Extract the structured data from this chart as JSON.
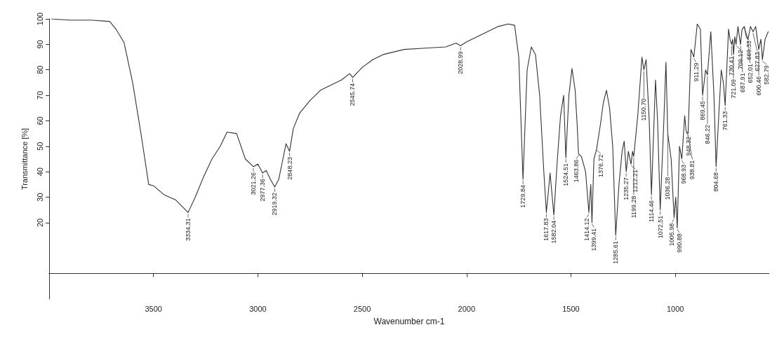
{
  "chart_data": {
    "type": "line",
    "xlabel": "Wavenumber cm-1",
    "ylabel": "Transmittance [%]",
    "xlim": [
      4000,
      550
    ],
    "xticks": [
      3500,
      3000,
      2500,
      2000,
      1500,
      1000
    ],
    "ylim": [
      -10,
      100
    ],
    "yticks": [
      20,
      30,
      40,
      50,
      60,
      70,
      80,
      90,
      100
    ],
    "grid": false,
    "marker": "none",
    "line_style": "solid",
    "series": [
      {
        "color": "#333333",
        "x": [
          3990,
          3900,
          3800,
          3710,
          3680,
          3641,
          3600,
          3560,
          3523,
          3500,
          3450,
          3395,
          3334.31,
          3300,
          3260,
          3220,
          3180,
          3148,
          3102,
          3060,
          3021.26,
          3000,
          2977.36,
          2960,
          2940,
          2919.32,
          2900,
          2880,
          2865,
          2848.23,
          2830,
          2800,
          2750,
          2700,
          2650,
          2600,
          2560,
          2545.74,
          2500,
          2450,
          2400,
          2300,
          2200,
          2100,
          2050,
          2028.99,
          2000,
          1950,
          1900,
          1850,
          1800,
          1770,
          1750,
          1729.84,
          1710,
          1690,
          1670,
          1650,
          1630,
          1617.83,
          1600,
          1582.04,
          1565,
          1550,
          1535,
          1524.51,
          1510,
          1495,
          1480,
          1470,
          1463.86,
          1450,
          1430,
          1414.12,
          1405,
          1399.41,
          1390,
          1376.72,
          1360,
          1345,
          1330,
          1315,
          1300,
          1285.61,
          1270,
          1255,
          1245,
          1235.27,
          1225,
          1212.21,
          1205,
          1199.28,
          1180,
          1160,
          1150.7,
          1140,
          1125,
          1114.46,
          1095,
          1085,
          1072.51,
          1055,
          1045,
          1036.28,
          1020,
          1005.98,
          998,
          990.88,
          980,
          968.93,
          955,
          948.32,
          938.81,
          925,
          911.29,
          895,
          880,
          869.45,
          855,
          846.22,
          830,
          815,
          804.68,
          790,
          780,
          770,
          761.33,
          745,
          738,
          730.41,
          725,
          721.09,
          715,
          709.12,
          700,
          687.91,
          680,
          669.33,
          660,
          652.01,
          640,
          627.83,
          615,
          600.46,
          590,
          582.79,
          570,
          555
        ],
        "values": [
          100,
          99.5,
          99.5,
          99,
          96,
          90.7,
          75,
          55,
          35,
          34.5,
          31,
          29,
          24,
          30,
          38,
          45,
          50,
          55.5,
          55,
          45,
          42,
          43,
          39.5,
          40.5,
          37,
          34,
          37,
          45,
          51,
          48,
          57,
          63,
          68,
          72,
          74,
          76,
          78.5,
          77,
          81,
          84,
          86,
          88,
          88.5,
          89,
          90.5,
          89.5,
          91,
          93,
          95,
          97,
          98,
          97.5,
          85,
          37,
          80,
          89,
          86,
          70,
          40,
          24,
          39.5,
          23,
          45,
          62,
          70,
          45.5,
          70,
          80.5,
          72,
          58,
          47,
          46,
          40,
          24,
          35,
          20,
          45,
          49,
          58,
          67,
          72,
          65,
          50,
          15,
          35,
          48,
          52,
          40,
          48,
          43,
          48,
          46,
          62,
          85,
          80,
          84,
          60,
          31,
          76,
          60,
          25,
          60,
          83,
          55,
          45,
          22,
          30,
          18,
          50,
          45,
          62,
          56,
          55,
          88,
          85,
          98,
          96,
          70,
          80,
          78,
          95,
          70,
          42,
          65,
          80,
          75,
          66,
          96,
          92,
          90,
          92,
          86,
          93,
          90,
          97,
          90,
          96,
          97,
          93,
          92,
          97,
          95,
          97,
          88,
          92,
          84,
          92,
          95
        ]
      }
    ],
    "annotations": [
      {
        "text": "3334.31",
        "x": 3334.31,
        "y": 24
      },
      {
        "text": "3021.26",
        "x": 3021.26,
        "y": 42
      },
      {
        "text": "2977.36",
        "x": 2977.36,
        "y": 39.5
      },
      {
        "text": "2919.32",
        "x": 2919.32,
        "y": 34
      },
      {
        "text": "2848.23",
        "x": 2848.23,
        "y": 48
      },
      {
        "text": "2545.74",
        "x": 2545.74,
        "y": 77
      },
      {
        "text": "2028.99",
        "x": 2028.99,
        "y": 89.5
      },
      {
        "text": "1729.84",
        "x": 1729.84,
        "y": 37
      },
      {
        "text": "1617.83",
        "x": 1617.83,
        "y": 24
      },
      {
        "text": "1582.04",
        "x": 1582.04,
        "y": 23
      },
      {
        "text": "1524.51",
        "x": 1524.51,
        "y": 45.5
      },
      {
        "text": "1463.86",
        "x": 1463.86,
        "y": 47
      },
      {
        "text": "1414.12",
        "x": 1414.12,
        "y": 24
      },
      {
        "text": "1399.41",
        "x": 1399.41,
        "y": 20
      },
      {
        "text": "1376.72",
        "x": 1376.72,
        "y": 49
      },
      {
        "text": "1285.61",
        "x": 1285.61,
        "y": 15
      },
      {
        "text": "1235.27",
        "x": 1235.27,
        "y": 40
      },
      {
        "text": "1212.21",
        "x": 1212.21,
        "y": 43
      },
      {
        "text": "1199.28",
        "x": 1199.28,
        "y": 46
      },
      {
        "text": "1150.70",
        "x": 1150.7,
        "y": 80
      },
      {
        "text": "1114.46",
        "x": 1114.46,
        "y": 31
      },
      {
        "text": "1072.51",
        "x": 1072.51,
        "y": 25
      },
      {
        "text": "1036.28",
        "x": 1036.28,
        "y": 55
      },
      {
        "text": "1005.98",
        "x": 1005.98,
        "y": 22
      },
      {
        "text": "990.88",
        "x": 990.88,
        "y": 18
      },
      {
        "text": "968.93",
        "x": 968.93,
        "y": 45
      },
      {
        "text": "948.32",
        "x": 948.32,
        "y": 56
      },
      {
        "text": "938.81",
        "x": 938.81,
        "y": 55
      },
      {
        "text": "911.29",
        "x": 911.29,
        "y": 85
      },
      {
        "text": "869.45",
        "x": 869.45,
        "y": 70
      },
      {
        "text": "846.22",
        "x": 846.22,
        "y": 78
      },
      {
        "text": "804.68",
        "x": 804.68,
        "y": 42
      },
      {
        "text": "761.33",
        "x": 761.33,
        "y": 66
      },
      {
        "text": "730.41",
        "x": 730.41,
        "y": 90
      },
      {
        "text": "721.09",
        "x": 721.09,
        "y": 86
      },
      {
        "text": "709.12",
        "x": 709.12,
        "y": 90
      },
      {
        "text": "687.91",
        "x": 687.91,
        "y": 90
      },
      {
        "text": "669.33",
        "x": 669.33,
        "y": 97
      },
      {
        "text": "652.01",
        "x": 652.01,
        "y": 92
      },
      {
        "text": "627.83",
        "x": 627.83,
        "y": 95
      },
      {
        "text": "600.46",
        "x": 600.46,
        "y": 88
      },
      {
        "text": "582.79",
        "x": 582.79,
        "y": 84
      }
    ]
  }
}
